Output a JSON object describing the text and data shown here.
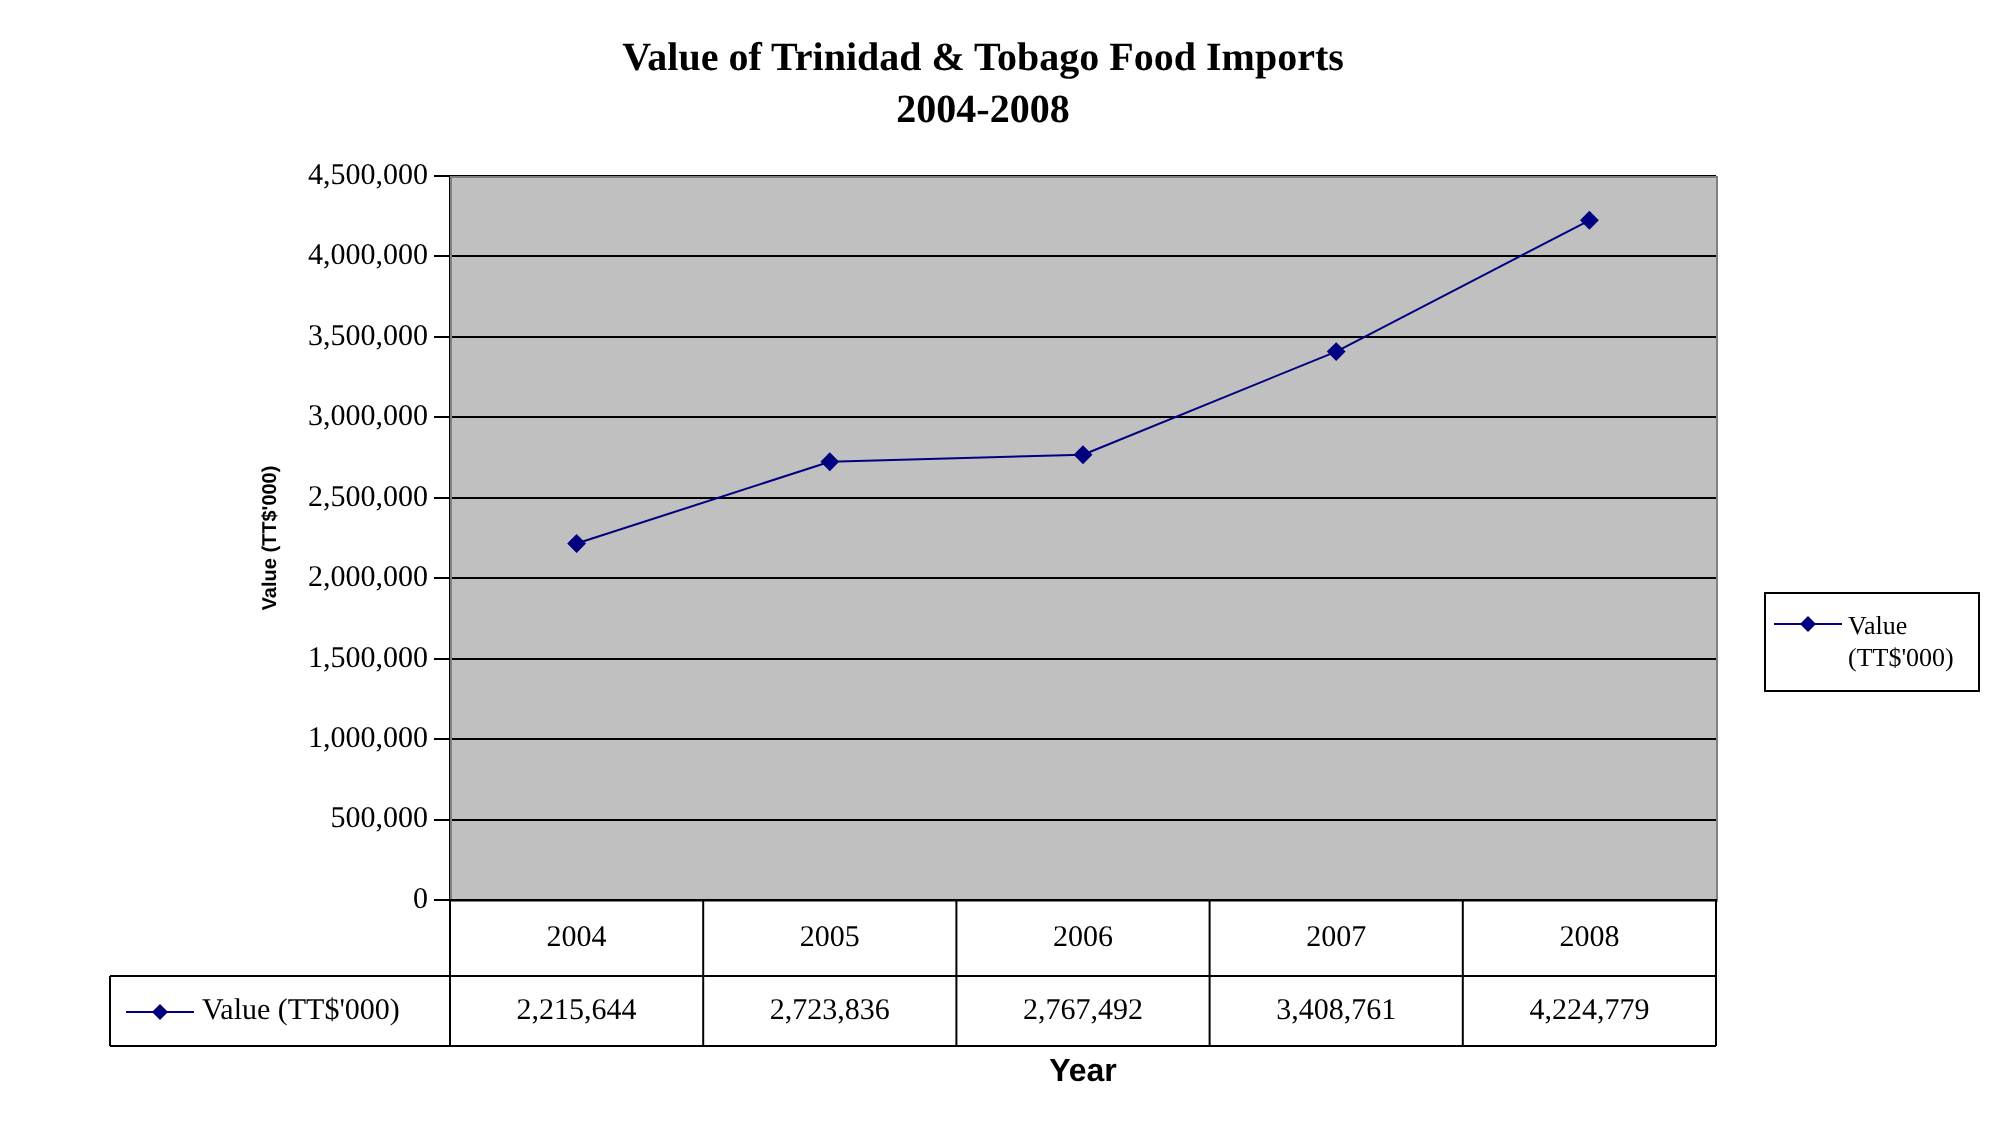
{
  "chart_data": {
    "type": "line",
    "title": "Value of Trinidad & Tobago Food Imports",
    "subtitle": "2004-2008",
    "xlabel": "Year",
    "ylabel": "Value (TT$'000)",
    "categories": [
      "2004",
      "2005",
      "2006",
      "2007",
      "2008"
    ],
    "series": [
      {
        "name": "Value (TT$'000)",
        "color": "#000080",
        "values": [
          2215644,
          2723836,
          2767492,
          3408761,
          4224779
        ],
        "value_labels": [
          "2,215,644",
          "2,723,836",
          "2,767,492",
          "3,408,761",
          "4,224,779"
        ]
      }
    ],
    "ylim": [
      0,
      4500000
    ],
    "yticks": [
      {
        "value": 0,
        "label": "0"
      },
      {
        "value": 500000,
        "label": "500,000"
      },
      {
        "value": 1000000,
        "label": "1,000,000"
      },
      {
        "value": 1500000,
        "label": "1,500,000"
      },
      {
        "value": 2000000,
        "label": "2,000,000"
      },
      {
        "value": 2500000,
        "label": "2,500,000"
      },
      {
        "value": 3000000,
        "label": "3,000,000"
      },
      {
        "value": 3500000,
        "label": "3,500,000"
      },
      {
        "value": 4000000,
        "label": "4,000,000"
      },
      {
        "value": 4500000,
        "label": "4,500,000"
      }
    ],
    "grid": "y",
    "legend": "right",
    "marker": "diamond"
  }
}
